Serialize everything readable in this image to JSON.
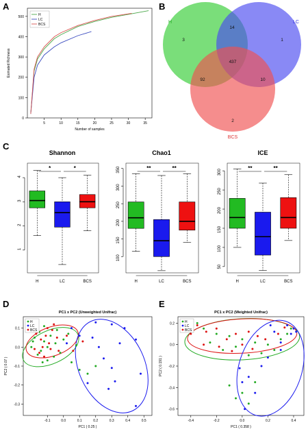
{
  "panels": {
    "A": "A",
    "B": "B",
    "C": "C",
    "D": "D",
    "E": "E"
  },
  "chart_data": [
    {
      "type": "line",
      "panel": "A",
      "xlabel": "Number of samples",
      "ylabel": "Esimated Richness",
      "xlim": [
        0,
        37
      ],
      "ylim": [
        0,
        540
      ],
      "xticks": [
        "5",
        "10",
        "15",
        "20",
        "25",
        "30",
        "35"
      ],
      "yticks": [
        "0",
        "100",
        "200",
        "300",
        "400",
        "500"
      ],
      "legend": [
        "H",
        "LC",
        "BCS"
      ],
      "legend_position": "top-left",
      "colors": {
        "H": "#4aa84a",
        "LC": "#3b4cc0",
        "BCS": "#d9534f"
      },
      "series": [
        {
          "name": "H",
          "x": [
            1,
            2,
            3,
            5,
            8,
            10,
            15,
            20,
            25,
            30,
            35,
            36
          ],
          "y": [
            20,
            230,
            290,
            340,
            390,
            410,
            450,
            475,
            495,
            510,
            525,
            528
          ]
        },
        {
          "name": "LC",
          "x": [
            1,
            2,
            3,
            5,
            8,
            10,
            15,
            19
          ],
          "y": [
            20,
            200,
            260,
            310,
            350,
            370,
            405,
            425
          ]
        },
        {
          "name": "BCS",
          "x": [
            1,
            2,
            3,
            5,
            8,
            10,
            15,
            20,
            25,
            31
          ],
          "y": [
            20,
            240,
            300,
            350,
            400,
            420,
            455,
            480,
            500,
            515
          ]
        }
      ]
    },
    {
      "type": "venn",
      "panel": "B",
      "sets": [
        "H",
        "LC",
        "BCS"
      ],
      "colors": {
        "H": "#33cc33",
        "LC": "#4a4af0",
        "BCS": "#f05050"
      },
      "regions": {
        "H_only": "3",
        "LC_only": "1",
        "BCS_only": "2",
        "H_LC": "14",
        "H_BCS": "92",
        "LC_BCS": "10",
        "all": "437"
      }
    },
    {
      "type": "box",
      "panel": "C",
      "plots": [
        {
          "title": "Shannon",
          "categories": [
            "H",
            "LC",
            "BCS"
          ],
          "ylim": [
            0,
            4.6
          ],
          "yticks": [
            "1",
            "2",
            "3",
            "4"
          ],
          "boxes": [
            {
              "min": 1.6,
              "q1": 2.75,
              "median": 3.05,
              "q3": 3.45,
              "max": 4.3
            },
            {
              "min": 0.4,
              "q1": 1.95,
              "median": 2.55,
              "q3": 3.0,
              "max": 4.0
            },
            {
              "min": 1.8,
              "q1": 2.75,
              "median": 3.0,
              "q3": 3.3,
              "max": 4.1
            }
          ],
          "significance": [
            "*",
            "*"
          ]
        },
        {
          "title": "Chao1",
          "categories": [
            "H",
            "LC",
            "BCS"
          ],
          "ylim": [
            50,
            365
          ],
          "yticks": [
            "100",
            "150",
            "200",
            "250",
            "300",
            "350"
          ],
          "boxes": [
            {
              "min": 115,
              "q1": 180,
              "median": 210,
              "q3": 255,
              "max": 335
            },
            {
              "min": 60,
              "q1": 100,
              "median": 145,
              "q3": 205,
              "max": 330
            },
            {
              "min": 140,
              "q1": 175,
              "median": 200,
              "q3": 255,
              "max": 335
            }
          ],
          "significance": [
            "**",
            "**"
          ]
        },
        {
          "title": "ICE",
          "categories": [
            "H",
            "LC",
            "BCS"
          ],
          "ylim": [
            30,
            320
          ],
          "yticks": [
            "50",
            "100",
            "150",
            "200",
            "250",
            "300"
          ],
          "boxes": [
            {
              "min": 100,
              "q1": 150,
              "median": 178,
              "q3": 228,
              "max": 305
            },
            {
              "min": 40,
              "q1": 80,
              "median": 128,
              "q3": 192,
              "max": 268
            },
            {
              "min": 118,
              "q1": 150,
              "median": 178,
              "q3": 230,
              "max": 290
            }
          ],
          "significance": [
            "**",
            "**"
          ]
        }
      ],
      "colors": {
        "H": "#22bb22",
        "LC": "#1a1aee",
        "BCS": "#ee1111"
      }
    },
    {
      "type": "scatter",
      "panel": "D",
      "title": "PC1 x PC2 (Unweighted Unifrac)",
      "xlabel": "PC1 ( 0.25 )",
      "ylabel": "PC2 ( 0.07 )",
      "xlim": [
        -0.25,
        0.55
      ],
      "ylim": [
        -0.36,
        0.16
      ],
      "xticks": [
        "-0.1",
        "0.0",
        "0.1",
        "0.2",
        "0.3",
        "0.4",
        "0.5"
      ],
      "yticks": [
        "-0.3",
        "-0.2",
        "-0.1",
        "0.0",
        "0.1"
      ],
      "legend": [
        "H",
        "LC",
        "BCS"
      ],
      "legend_position": "top-left",
      "series": [
        {
          "name": "H",
          "color": "#22aa22",
          "points": [
            [
              -0.18,
              0.05
            ],
            [
              -0.15,
              0.08
            ],
            [
              -0.12,
              0.03
            ],
            [
              -0.1,
              0.0
            ],
            [
              -0.14,
              -0.02
            ],
            [
              -0.08,
              0.06
            ],
            [
              -0.05,
              0.02
            ],
            [
              -0.2,
              0.0
            ],
            [
              -0.16,
              -0.04
            ],
            [
              -0.12,
              0.11
            ],
            [
              -0.06,
              -0.05
            ],
            [
              0.0,
              0.04
            ],
            [
              0.05,
              -0.08
            ],
            [
              -0.02,
              -0.03
            ],
            [
              0.1,
              -0.12
            ],
            [
              0.15,
              -0.14
            ],
            [
              -0.1,
              -0.07
            ],
            [
              0.2,
              -0.1
            ],
            [
              -0.04,
              0.09
            ],
            [
              0.08,
              0.01
            ],
            [
              -0.19,
              0.03
            ],
            [
              -0.13,
              -0.08
            ],
            [
              0.03,
              0.07
            ]
          ]
        },
        {
          "name": "LC",
          "color": "#1a1aee",
          "points": [
            [
              0.2,
              0.13
            ],
            [
              0.3,
              0.12
            ],
            [
              0.38,
              0.1
            ],
            [
              0.45,
              0.04
            ],
            [
              0.35,
              0.02
            ],
            [
              0.22,
              0.0
            ],
            [
              0.1,
              0.06
            ],
            [
              0.05,
              0.1
            ],
            [
              0.25,
              -0.06
            ],
            [
              0.3,
              -0.11
            ],
            [
              0.32,
              -0.18
            ],
            [
              0.15,
              -0.19
            ],
            [
              0.28,
              -0.22
            ],
            [
              0.48,
              -0.14
            ],
            [
              0.45,
              -0.31
            ],
            [
              0.02,
              0.02
            ],
            [
              0.18,
              0.05
            ]
          ]
        },
        {
          "name": "BCS",
          "color": "#dd1111",
          "points": [
            [
              -0.17,
              0.07
            ],
            [
              -0.14,
              0.04
            ],
            [
              -0.11,
              0.06
            ],
            [
              -0.09,
              0.02
            ],
            [
              -0.13,
              0.0
            ],
            [
              -0.07,
              0.09
            ],
            [
              -0.04,
              0.05
            ],
            [
              -0.18,
              -0.01
            ],
            [
              -0.15,
              -0.03
            ],
            [
              -0.1,
              0.1
            ],
            [
              -0.03,
              -0.02
            ],
            [
              0.02,
              0.06
            ],
            [
              -0.06,
              0.12
            ],
            [
              -0.12,
              -0.05
            ],
            [
              0.06,
              -0.02
            ],
            [
              -0.08,
              -0.01
            ],
            [
              0.12,
              0.03
            ],
            [
              -0.16,
              0.1
            ]
          ]
        }
      ]
    },
    {
      "type": "scatter",
      "panel": "E",
      "title": "PC1 x PC2 (Weighted Unifrac)",
      "xlabel": "PC1 ( 0.358 )",
      "ylabel": "PC2 ( 0.191 )",
      "xlim": [
        -0.5,
        0.48
      ],
      "ylim": [
        -0.66,
        0.26
      ],
      "xticks": [
        "-0.4",
        "-0.2",
        "0.0",
        "0.2",
        "0.4"
      ],
      "yticks": [
        "-0.6",
        "-0.4",
        "-0.2",
        "0.0",
        "0.2"
      ],
      "legend": [
        "H",
        "LC",
        "BCS"
      ],
      "legend_position": "top-left",
      "series": [
        {
          "name": "H",
          "color": "#22aa22",
          "points": [
            [
              -0.3,
              0.15
            ],
            [
              -0.2,
              0.1
            ],
            [
              -0.1,
              0.08
            ],
            [
              0.0,
              0.05
            ],
            [
              0.1,
              0.02
            ],
            [
              0.2,
              0.0
            ],
            [
              0.3,
              0.05
            ],
            [
              -0.25,
              0.02
            ],
            [
              -0.15,
              -0.05
            ],
            [
              0.05,
              -0.1
            ],
            [
              0.15,
              -0.08
            ],
            [
              -0.05,
              -0.02
            ],
            [
              0.25,
              -0.05
            ],
            [
              0.35,
              0.1
            ],
            [
              -0.35,
              0.2
            ],
            [
              0.0,
              -0.45
            ],
            [
              -0.05,
              -0.5
            ],
            [
              0.1,
              -0.35
            ],
            [
              -0.1,
              -0.38
            ],
            [
              0.05,
              -0.55
            ],
            [
              0.38,
              0.15
            ]
          ]
        },
        {
          "name": "LC",
          "color": "#1a1aee",
          "points": [
            [
              0.35,
              0.18
            ],
            [
              0.4,
              0.15
            ],
            [
              0.42,
              0.12
            ],
            [
              0.25,
              0.12
            ],
            [
              0.3,
              0.02
            ],
            [
              0.2,
              -0.12
            ],
            [
              0.15,
              -0.2
            ],
            [
              0.05,
              -0.3
            ],
            [
              0.0,
              -0.35
            ],
            [
              0.1,
              -0.45
            ],
            [
              0.02,
              -0.6
            ],
            [
              0.3,
              -0.05
            ],
            [
              0.38,
              0.1
            ],
            [
              0.22,
              0.18
            ],
            [
              -0.02,
              -0.22
            ]
          ]
        },
        {
          "name": "BCS",
          "color": "#dd1111",
          "points": [
            [
              -0.35,
              0.18
            ],
            [
              -0.28,
              0.12
            ],
            [
              -0.2,
              0.15
            ],
            [
              -0.12,
              0.05
            ],
            [
              -0.05,
              0.1
            ],
            [
              0.05,
              0.12
            ],
            [
              0.12,
              0.08
            ],
            [
              -0.3,
              0.0
            ],
            [
              -0.18,
              -0.02
            ],
            [
              -0.08,
              -0.06
            ],
            [
              0.08,
              -0.04
            ],
            [
              0.18,
              0.05
            ],
            [
              0.28,
              0.1
            ],
            [
              -0.4,
              0.1
            ],
            [
              0.0,
              0.0
            ],
            [
              0.33,
              0.16
            ]
          ]
        }
      ]
    }
  ]
}
